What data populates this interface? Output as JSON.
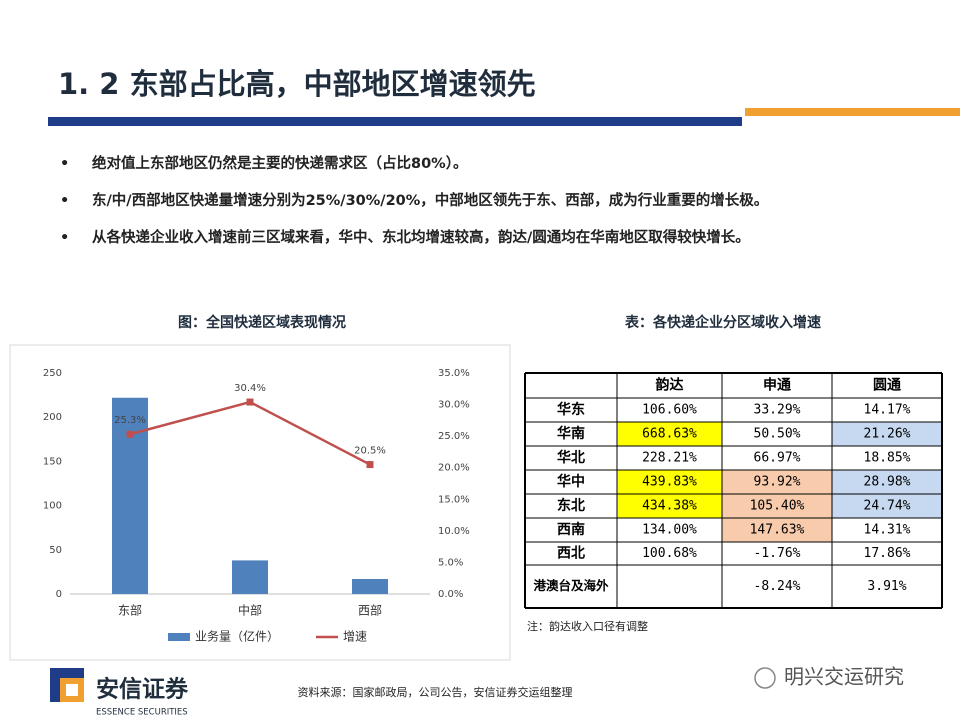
{
  "header": {
    "title": "1. 2 东部占比高，中部地区增速领先"
  },
  "bullets": [
    "绝对值上东部地区仍然是主要的快递需求区（占比80%）。",
    "东/中/西部地区快递量增速分别为25%/30%/20%，中部地区领先于东、西部，成为行业重要的增长极。",
    "从各快递企业收入增速前三区域来看，华中、东北均增速较高，韵达/圆通均在华南地区取得较快增长。"
  ],
  "chart_data": {
    "type": "bar",
    "title": "图：全国快递区域表现情况",
    "categories": [
      "东部",
      "中部",
      "西部"
    ],
    "series": [
      {
        "name": "业务量（亿件）",
        "color": "#4f81bd",
        "type": "bar",
        "values": [
          222,
          38,
          17
        ]
      },
      {
        "name": "增速",
        "color": "#c0504d",
        "type": "line",
        "axis": "y2",
        "values": [
          25.3,
          30.4,
          20.5
        ],
        "value_labels": [
          "25.3%",
          "30.4%",
          "20.5%"
        ]
      }
    ],
    "ylim": [
      0,
      250
    ],
    "yticks": [
      0,
      50,
      100,
      150,
      200,
      250
    ],
    "y2lim": [
      0,
      35
    ],
    "y2ticks": [
      {
        "value": 0,
        "label": "0.0%"
      },
      {
        "value": 5,
        "label": "5.0%"
      },
      {
        "value": 10,
        "label": "10.0%"
      },
      {
        "value": 15,
        "label": "15.0%"
      },
      {
        "value": 20,
        "label": "20.0%"
      },
      {
        "value": 25,
        "label": "25.0%"
      },
      {
        "value": 30,
        "label": "30.0%"
      },
      {
        "value": 35,
        "label": "35.0%"
      }
    ],
    "legend": "bottom"
  },
  "table": {
    "title": "表：各快递企业分区域收入增速",
    "columns": [
      "韵达",
      "申通",
      "圆通"
    ],
    "rows": [
      {
        "label": "华东",
        "cells": [
          "106.60%",
          "33.29%",
          "14.17%"
        ],
        "colors": [
          "#ffffff",
          "#ffffff",
          "#ffffff"
        ]
      },
      {
        "label": "华南",
        "cells": [
          "668.63%",
          "50.50%",
          "21.26%"
        ],
        "colors": [
          "#ffff00",
          "#ffffff",
          "#c6d9f1"
        ]
      },
      {
        "label": "华北",
        "cells": [
          "228.21%",
          "66.97%",
          "18.85%"
        ],
        "colors": [
          "#ffffff",
          "#ffffff",
          "#ffffff"
        ]
      },
      {
        "label": "华中",
        "cells": [
          "439.83%",
          "93.92%",
          "28.98%"
        ],
        "colors": [
          "#ffff00",
          "#f8cbad",
          "#c6d9f1"
        ]
      },
      {
        "label": "东北",
        "cells": [
          "434.38%",
          "105.40%",
          "24.74%"
        ],
        "colors": [
          "#ffff00",
          "#f8cbad",
          "#c6d9f1"
        ]
      },
      {
        "label": "西南",
        "cells": [
          "134.00%",
          "147.63%",
          "14.31%"
        ],
        "colors": [
          "#ffffff",
          "#f8cbad",
          "#ffffff"
        ]
      },
      {
        "label": "西北",
        "cells": [
          "100.68%",
          "-1.76%",
          "17.86%"
        ],
        "colors": [
          "#ffffff",
          "#ffffff",
          "#ffffff"
        ]
      },
      {
        "label": "港澳台及海外",
        "cells": [
          null,
          "-8.24%",
          "3.91%"
        ],
        "colors": [
          "#ffffff",
          "#ffffff",
          "#ffffff"
        ]
      }
    ],
    "note": "注：韵达收入口径有调整"
  },
  "footer": {
    "source": "资料来源：国家邮政局，公司公告，安信证券交运组整理",
    "logo": "安信证券",
    "logo_en": "ESSENCE SECURITIES",
    "watermark": "明兴交运研究"
  }
}
